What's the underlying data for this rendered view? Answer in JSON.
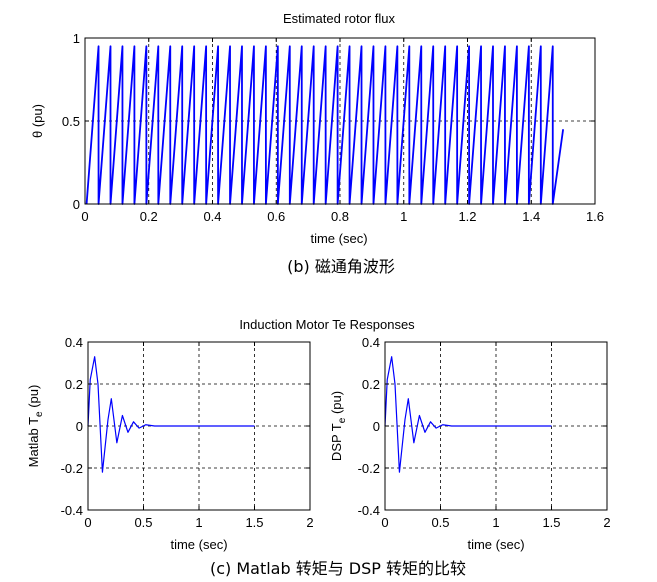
{
  "chart_data": [
    {
      "type": "line",
      "title": "Estimated rotor flux",
      "xlabel": "time (sec)",
      "ylabel": "θ (pu)",
      "xlim": [
        0,
        1.6
      ],
      "ylim": [
        0,
        1
      ],
      "xticks": [
        "0",
        "0.2",
        "0.4",
        "0.6",
        "0.8",
        "1",
        "1.2",
        "1.4",
        "1.6"
      ],
      "yticks": [
        "0",
        "0.5",
        "1"
      ],
      "grid": true,
      "series": [
        {
          "color": "#0000ff",
          "form": "sawtooth",
          "x_start": 0.005,
          "x_end": 1.5,
          "period": 0.0375,
          "min": 0,
          "max": 0.95,
          "final_value": 0.45
        }
      ],
      "caption": "(b)  磁通角波形"
    },
    {
      "type": "line",
      "title": "Induction Motor Te Responses",
      "xlabel": "time (sec)",
      "ylabel": "Matlab T",
      "ylabel_sub": "e",
      "ylabel_unit": " (pu)",
      "xlim": [
        0,
        2
      ],
      "ylim": [
        -0.4,
        0.4
      ],
      "xticks": [
        "0",
        "0.5",
        "1",
        "1.5",
        "2"
      ],
      "yticks": [
        "-0.4",
        "-0.2",
        "0",
        "0.2",
        "0.4"
      ],
      "grid": true,
      "series": [
        {
          "color": "#0000ff",
          "form": "damped_oscillation",
          "x_end": 1.5,
          "points": [
            [
              0,
              0
            ],
            [
              0.02,
              0.22
            ],
            [
              0.06,
              0.33
            ],
            [
              0.09,
              0.2
            ],
            [
              0.13,
              -0.22
            ],
            [
              0.18,
              0.03
            ],
            [
              0.21,
              0.13
            ],
            [
              0.26,
              -0.08
            ],
            [
              0.31,
              0.05
            ],
            [
              0.36,
              -0.03
            ],
            [
              0.41,
              0.02
            ],
            [
              0.46,
              -0.01
            ],
            [
              0.52,
              0.006
            ],
            [
              0.6,
              0
            ],
            [
              1.5,
              0
            ]
          ]
        }
      ]
    },
    {
      "type": "line",
      "title": "",
      "xlabel": "time (sec)",
      "ylabel": "DSP T",
      "ylabel_sub": "e",
      "ylabel_unit": " (pu)",
      "xlim": [
        0,
        2
      ],
      "ylim": [
        -0.4,
        0.4
      ],
      "xticks": [
        "0",
        "0.5",
        "1",
        "1.5",
        "2"
      ],
      "yticks": [
        "-0.4",
        "-0.2",
        "0",
        "0.2",
        "0.4"
      ],
      "grid": true,
      "series": [
        {
          "color": "#0000ff",
          "form": "damped_oscillation",
          "x_end": 1.5,
          "points": [
            [
              0,
              0
            ],
            [
              0.02,
              0.22
            ],
            [
              0.06,
              0.33
            ],
            [
              0.09,
              0.2
            ],
            [
              0.13,
              -0.22
            ],
            [
              0.18,
              0.03
            ],
            [
              0.21,
              0.13
            ],
            [
              0.26,
              -0.08
            ],
            [
              0.31,
              0.05
            ],
            [
              0.36,
              -0.03
            ],
            [
              0.41,
              0.02
            ],
            [
              0.46,
              -0.01
            ],
            [
              0.52,
              0.006
            ],
            [
              0.6,
              0
            ],
            [
              1.5,
              0
            ]
          ]
        }
      ]
    }
  ],
  "captions": {
    "c": "(c)   Matlab 转矩与 DSP 转矩的比较"
  }
}
